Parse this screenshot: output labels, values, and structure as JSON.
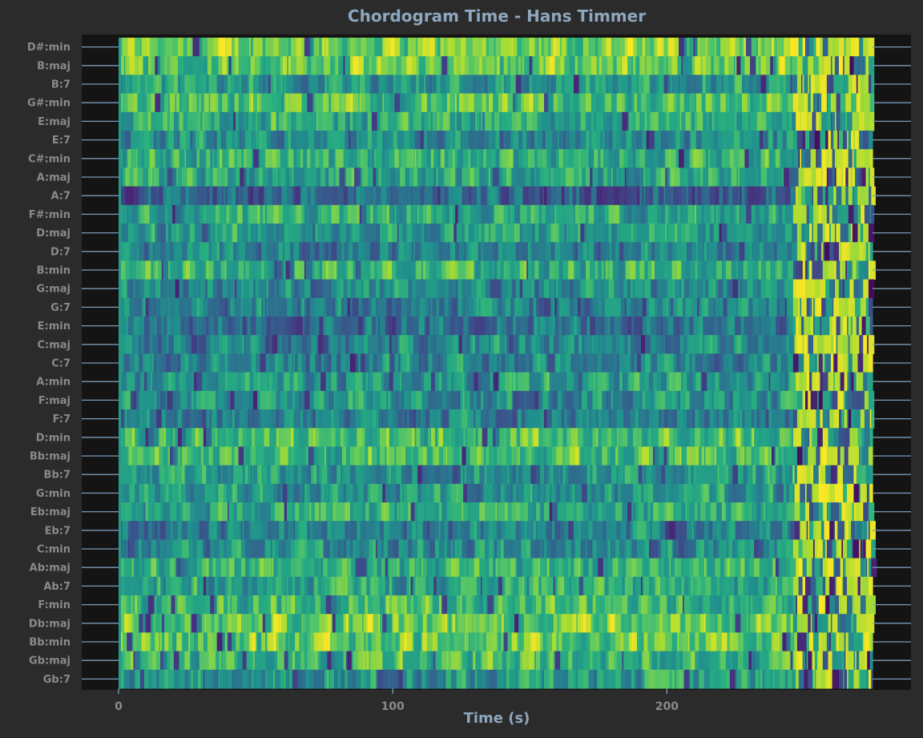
{
  "chart_data": {
    "type": "heatmap",
    "title": "Chordogram Time - Hans Timmer",
    "xlabel": "Time (s)",
    "ylabel": "",
    "x_ticks": [
      0,
      100,
      200
    ],
    "xlim": [
      0,
      275
    ],
    "y_categories_top_to_bottom": [
      "D#:min",
      "B:maj",
      "B:7",
      "G#:min",
      "E:maj",
      "E:7",
      "C#:min",
      "A:maj",
      "A:7",
      "F#:min",
      "D:maj",
      "D:7",
      "B:min",
      "G:maj",
      "G:7",
      "E:min",
      "C:maj",
      "C:7",
      "A:min",
      "F:maj",
      "F:7",
      "D:min",
      "Bb:maj",
      "Bb:7",
      "G:min",
      "Eb:maj",
      "Eb:7",
      "C:min",
      "Ab:maj",
      "Ab:7",
      "F:min",
      "Db:maj",
      "Bb:min",
      "Gb:maj",
      "Gb:7"
    ],
    "colormap": "viridis",
    "row_mean_intensity": [
      0.8,
      0.78,
      0.55,
      0.72,
      0.62,
      0.5,
      0.65,
      0.6,
      0.35,
      0.62,
      0.55,
      0.45,
      0.65,
      0.5,
      0.45,
      0.4,
      0.48,
      0.45,
      0.55,
      0.52,
      0.45,
      0.7,
      0.7,
      0.55,
      0.55,
      0.62,
      0.45,
      0.5,
      0.65,
      0.6,
      0.7,
      0.78,
      0.75,
      0.68,
      0.55
    ],
    "grid": false
  },
  "colors": {
    "background": "#2b2b2b",
    "plot_background": "#141414",
    "title": "#8ea7be",
    "tick_label": "#8a8a8a",
    "tick_line": "#7a9bb8"
  }
}
